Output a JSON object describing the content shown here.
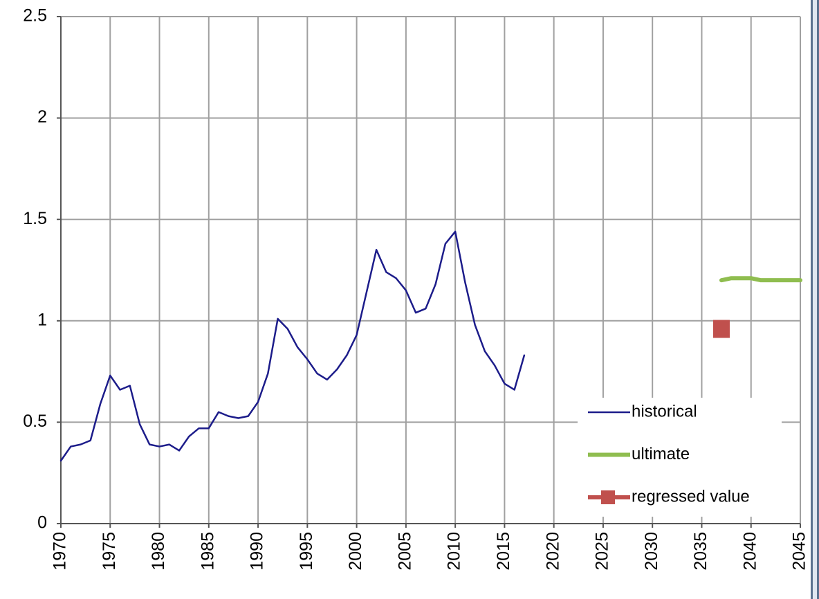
{
  "chart_data": {
    "type": "line",
    "xlim": [
      1970,
      2045
    ],
    "xticks": [
      1970,
      1975,
      1980,
      1985,
      1990,
      1995,
      2000,
      2005,
      2010,
      2015,
      2020,
      2025,
      2030,
      2035,
      2040,
      2045
    ],
    "ylim": [
      0,
      2.5
    ],
    "yticks": [
      0,
      0.5,
      1,
      1.5,
      2,
      2.5
    ],
    "grid": true,
    "legend": "lower right",
    "series": [
      {
        "name": "historical",
        "color": "#1c1c8a",
        "marker": "none",
        "x": [
          1970,
          1971,
          1972,
          1973,
          1974,
          1975,
          1976,
          1977,
          1978,
          1979,
          1980,
          1981,
          1982,
          1983,
          1984,
          1985,
          1986,
          1987,
          1988,
          1989,
          1990,
          1991,
          1992,
          1993,
          1994,
          1995,
          1996,
          1997,
          1998,
          1999,
          2000,
          2001,
          2002,
          2003,
          2004,
          2005,
          2006,
          2007,
          2008,
          2009,
          2010,
          2011,
          2012,
          2013,
          2014,
          2015,
          2016,
          2017
        ],
        "values": [
          0.31,
          0.38,
          0.39,
          0.41,
          0.59,
          0.73,
          0.66,
          0.68,
          0.49,
          0.39,
          0.38,
          0.39,
          0.36,
          0.43,
          0.47,
          0.47,
          0.55,
          0.53,
          0.52,
          0.53,
          0.6,
          0.74,
          1.01,
          0.96,
          0.87,
          0.81,
          0.74,
          0.71,
          0.76,
          0.83,
          0.93,
          1.14,
          1.35,
          1.24,
          1.21,
          1.15,
          1.04,
          1.06,
          1.18,
          1.38,
          1.44,
          1.19,
          0.98,
          0.85,
          0.78,
          0.69,
          0.66,
          0.83
        ]
      },
      {
        "name": "ultimate",
        "color": "#8fbd4f",
        "marker": "none",
        "x": [
          2037,
          2038,
          2039,
          2040,
          2041,
          2042,
          2043,
          2044,
          2045
        ],
        "values": [
          1.2,
          1.21,
          1.21,
          1.21,
          1.2,
          1.2,
          1.2,
          1.2,
          1.2
        ]
      },
      {
        "name": "regressed value",
        "color": "#c0504d",
        "marker": "square",
        "x": [
          2037
        ],
        "values": [
          0.96
        ]
      }
    ]
  }
}
